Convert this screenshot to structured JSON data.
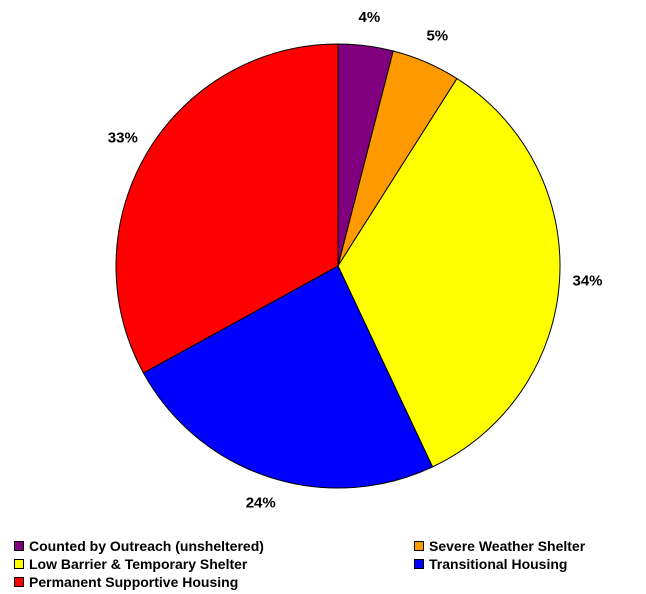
{
  "chart_data": {
    "type": "pie",
    "title": "",
    "start_angle_deg": 0,
    "direction": "clockwise",
    "slices": [
      {
        "label": "Counted by Outreach (unsheltered)",
        "value": 4,
        "display": "4%",
        "color": "#800080"
      },
      {
        "label": "Severe Weather Shelter",
        "value": 5,
        "display": "5%",
        "color": "#FF9900"
      },
      {
        "label": "Low Barrier & Temporary Shelter",
        "value": 34,
        "display": "34%",
        "color": "#FFFF00"
      },
      {
        "label": "Transitional Housing",
        "value": 24,
        "display": "24%",
        "color": "#0000FF"
      },
      {
        "label": "Permanent Supportive Housing",
        "value": 33,
        "display": "33%",
        "color": "#FF0000"
      }
    ],
    "legend": {
      "placement": "bottom",
      "items": [
        {
          "label": "Counted by Outreach (unsheltered)",
          "color": "#800080"
        },
        {
          "label": "Severe Weather Shelter",
          "color": "#FF9900"
        },
        {
          "label": "Low Barrier & Temporary Shelter",
          "color": "#FFFF00"
        },
        {
          "label": "Transitional Housing",
          "color": "#0000FF"
        },
        {
          "label": "Permanent Supportive Housing",
          "color": "#FF0000"
        }
      ]
    }
  }
}
